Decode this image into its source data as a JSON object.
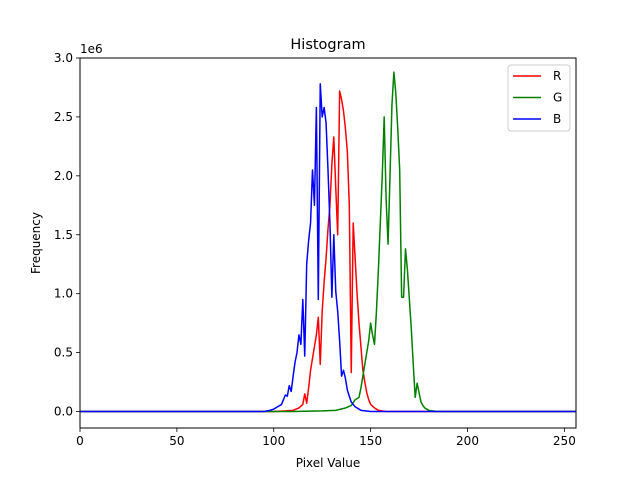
{
  "chart_data": {
    "type": "line",
    "title": "Histogram",
    "xlabel": "Pixel Value",
    "ylabel": "Frequency",
    "y_scale_label": "1e6",
    "xlim": [
      0,
      256
    ],
    "ylim": [
      -0.14,
      3.0
    ],
    "x_ticks": [
      0,
      50,
      100,
      150,
      200,
      250
    ],
    "y_ticks": [
      0.0,
      0.5,
      1.0,
      1.5,
      2.0,
      2.5,
      3.0
    ],
    "x_tick_labels": [
      "0",
      "50",
      "100",
      "150",
      "200",
      "250"
    ],
    "y_tick_labels": [
      "0.0",
      "0.5",
      "1.0",
      "1.5",
      "2.0",
      "2.5",
      "3.0"
    ],
    "grid": false,
    "legend_position": "top-right",
    "series": [
      {
        "name": "R",
        "color": "#ff0000",
        "points": [
          [
            0,
            0
          ],
          [
            100,
            0
          ],
          [
            106,
            0.005
          ],
          [
            110,
            0.01
          ],
          [
            113,
            0.03
          ],
          [
            115,
            0.06
          ],
          [
            116,
            0.15
          ],
          [
            117,
            0.07
          ],
          [
            118,
            0.2
          ],
          [
            119,
            0.35
          ],
          [
            120,
            0.45
          ],
          [
            121,
            0.55
          ],
          [
            122,
            0.65
          ],
          [
            123,
            0.8
          ],
          [
            124,
            0.4
          ],
          [
            125,
            0.85
          ],
          [
            126,
            1.1
          ],
          [
            127,
            1.3
          ],
          [
            128,
            1.55
          ],
          [
            129,
            1.75
          ],
          [
            130,
            2.1
          ],
          [
            131,
            2.33
          ],
          [
            132,
            1.9
          ],
          [
            133,
            1.5
          ],
          [
            134,
            2.72
          ],
          [
            135,
            2.65
          ],
          [
            136,
            2.55
          ],
          [
            137,
            2.4
          ],
          [
            138,
            2.2
          ],
          [
            139,
            1.75
          ],
          [
            140,
            0.33
          ],
          [
            141,
            1.6
          ],
          [
            142,
            1.3
          ],
          [
            143,
            1.0
          ],
          [
            144,
            0.75
          ],
          [
            145,
            0.55
          ],
          [
            146,
            0.35
          ],
          [
            147,
            0.25
          ],
          [
            148,
            0.16
          ],
          [
            149,
            0.1
          ],
          [
            150,
            0.06
          ],
          [
            152,
            0.03
          ],
          [
            154,
            0.01
          ],
          [
            158,
            0
          ],
          [
            256,
            0
          ]
        ]
      },
      {
        "name": "G",
        "color": "#008000",
        "points": [
          [
            0,
            0
          ],
          [
            110,
            0
          ],
          [
            125,
            0.005
          ],
          [
            132,
            0.01
          ],
          [
            137,
            0.03
          ],
          [
            140,
            0.05
          ],
          [
            142,
            0.1
          ],
          [
            144,
            0.12
          ],
          [
            145,
            0.2
          ],
          [
            146,
            0.3
          ],
          [
            147,
            0.4
          ],
          [
            148,
            0.5
          ],
          [
            149,
            0.6
          ],
          [
            150,
            0.75
          ],
          [
            151,
            0.65
          ],
          [
            152,
            0.57
          ],
          [
            153,
            0.85
          ],
          [
            154,
            1.2
          ],
          [
            155,
            1.6
          ],
          [
            156,
            2.0
          ],
          [
            157,
            2.5
          ],
          [
            158,
            1.8
          ],
          [
            159,
            1.42
          ],
          [
            160,
            2.0
          ],
          [
            161,
            2.6
          ],
          [
            162,
            2.88
          ],
          [
            163,
            2.7
          ],
          [
            164,
            2.4
          ],
          [
            165,
            2.05
          ],
          [
            166,
            0.97
          ],
          [
            167,
            0.97
          ],
          [
            168,
            1.38
          ],
          [
            169,
            1.2
          ],
          [
            170,
            0.95
          ],
          [
            171,
            0.7
          ],
          [
            172,
            0.4
          ],
          [
            173,
            0.12
          ],
          [
            174,
            0.24
          ],
          [
            175,
            0.16
          ],
          [
            176,
            0.08
          ],
          [
            177,
            0.05
          ],
          [
            178,
            0.03
          ],
          [
            180,
            0.01
          ],
          [
            184,
            0
          ],
          [
            256,
            0
          ]
        ]
      },
      {
        "name": "B",
        "color": "#0000ff",
        "points": [
          [
            0,
            0
          ],
          [
            95,
            0
          ],
          [
            98,
            0.01
          ],
          [
            100,
            0.02
          ],
          [
            102,
            0.04
          ],
          [
            104,
            0.06
          ],
          [
            105,
            0.1
          ],
          [
            106,
            0.14
          ],
          [
            107,
            0.13
          ],
          [
            108,
            0.22
          ],
          [
            109,
            0.17
          ],
          [
            110,
            0.3
          ],
          [
            111,
            0.42
          ],
          [
            112,
            0.5
          ],
          [
            113,
            0.65
          ],
          [
            114,
            0.57
          ],
          [
            115,
            0.95
          ],
          [
            116,
            0.47
          ],
          [
            117,
            1.25
          ],
          [
            118,
            1.45
          ],
          [
            119,
            1.6
          ],
          [
            120,
            2.05
          ],
          [
            121,
            1.75
          ],
          [
            122,
            2.58
          ],
          [
            123,
            0.95
          ],
          [
            124,
            2.78
          ],
          [
            125,
            2.5
          ],
          [
            126,
            2.58
          ],
          [
            127,
            2.45
          ],
          [
            128,
            2.05
          ],
          [
            129,
            1.6
          ],
          [
            130,
            0.97
          ],
          [
            131,
            1.5
          ],
          [
            132,
            1.02
          ],
          [
            133,
            0.85
          ],
          [
            134,
            0.6
          ],
          [
            135,
            0.3
          ],
          [
            136,
            0.35
          ],
          [
            137,
            0.28
          ],
          [
            138,
            0.18
          ],
          [
            140,
            0.08
          ],
          [
            142,
            0.04
          ],
          [
            145,
            0.01
          ],
          [
            150,
            0
          ],
          [
            256,
            0
          ]
        ]
      }
    ]
  }
}
